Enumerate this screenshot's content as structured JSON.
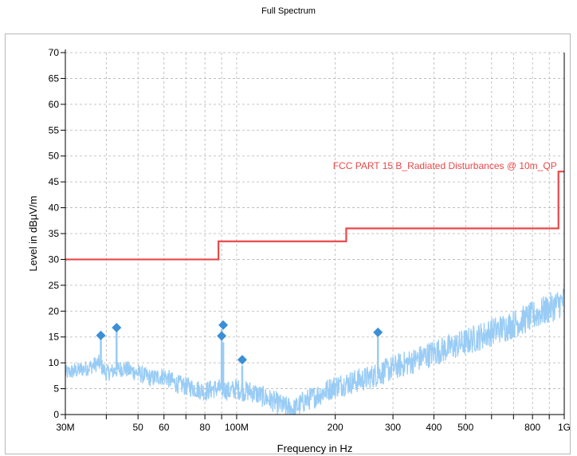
{
  "chart_data": {
    "type": "line",
    "title": "Full Spectrum",
    "xlabel": "Frequency in Hz",
    "ylabel": "Level in dBµV/m",
    "x_scale": "log",
    "xlim": [
      30000000,
      1000000000
    ],
    "ylim": [
      0,
      70
    ],
    "grid": true,
    "y_ticks": [
      0,
      5,
      10,
      15,
      20,
      25,
      30,
      35,
      40,
      45,
      50,
      55,
      60,
      65,
      70
    ],
    "x_ticks": [
      {
        "value": 30000000,
        "label": "30M"
      },
      {
        "value": 40000000,
        "label": ""
      },
      {
        "value": 50000000,
        "label": "50"
      },
      {
        "value": 60000000,
        "label": "60"
      },
      {
        "value": 70000000,
        "label": ""
      },
      {
        "value": 80000000,
        "label": "80"
      },
      {
        "value": 90000000,
        "label": ""
      },
      {
        "value": 100000000,
        "label": "100M"
      },
      {
        "value": 200000000,
        "label": "200"
      },
      {
        "value": 300000000,
        "label": "300"
      },
      {
        "value": 400000000,
        "label": "400"
      },
      {
        "value": 500000000,
        "label": "500"
      },
      {
        "value": 600000000,
        "label": ""
      },
      {
        "value": 700000000,
        "label": ""
      },
      {
        "value": 800000000,
        "label": "800"
      },
      {
        "value": 900000000,
        "label": ""
      },
      {
        "value": 1000000000,
        "label": "1G"
      }
    ],
    "limit_line": {
      "name": "FCC PART 15 B_Radiated Disturbances @ 10m_QP",
      "color": "#e8484a",
      "points": [
        [
          30000000,
          30
        ],
        [
          88000000,
          30
        ],
        [
          88000000,
          33.5
        ],
        [
          216000000,
          33.5
        ],
        [
          216000000,
          36
        ],
        [
          960000000,
          36
        ],
        [
          960000000,
          47
        ],
        [
          1000000000,
          47
        ]
      ]
    },
    "spectrum_envelope": {
      "color": "#99ccf5",
      "points": [
        [
          30000000,
          8
        ],
        [
          35000000,
          9
        ],
        [
          38000000,
          10
        ],
        [
          40000000,
          8
        ],
        [
          45000000,
          9
        ],
        [
          50000000,
          8
        ],
        [
          55000000,
          7
        ],
        [
          60000000,
          7.5
        ],
        [
          65000000,
          6
        ],
        [
          70000000,
          5.5
        ],
        [
          75000000,
          5
        ],
        [
          80000000,
          4.5
        ],
        [
          85000000,
          5
        ],
        [
          90000000,
          5
        ],
        [
          95000000,
          4.5
        ],
        [
          100000000,
          5
        ],
        [
          105000000,
          4.5
        ],
        [
          110000000,
          4.5
        ],
        [
          120000000,
          3.5
        ],
        [
          130000000,
          2.5
        ],
        [
          140000000,
          1.5
        ],
        [
          150000000,
          1
        ],
        [
          160000000,
          2.5
        ],
        [
          180000000,
          4
        ],
        [
          200000000,
          5.5
        ],
        [
          250000000,
          7
        ],
        [
          300000000,
          9
        ],
        [
          350000000,
          10.5
        ],
        [
          400000000,
          12
        ],
        [
          450000000,
          13
        ],
        [
          500000000,
          14
        ],
        [
          600000000,
          16
        ],
        [
          700000000,
          17.5
        ],
        [
          800000000,
          19
        ],
        [
          900000000,
          20.5
        ],
        [
          1000000000,
          22
        ]
      ]
    },
    "spectrum_spikes": [
      [
        38500000,
        14.5
      ],
      [
        43000000,
        16
      ],
      [
        90000000,
        16.5
      ],
      [
        91000000,
        14
      ],
      [
        104000000,
        9.5
      ],
      [
        270000000,
        15
      ]
    ],
    "markers": {
      "color": "#3a8fd6",
      "points": [
        [
          38500000,
          15.3
        ],
        [
          43000000,
          16.8
        ],
        [
          90000000,
          15.2
        ],
        [
          91000000,
          17.3
        ],
        [
          104000000,
          10.6
        ],
        [
          270000000,
          15.9
        ]
      ]
    }
  }
}
